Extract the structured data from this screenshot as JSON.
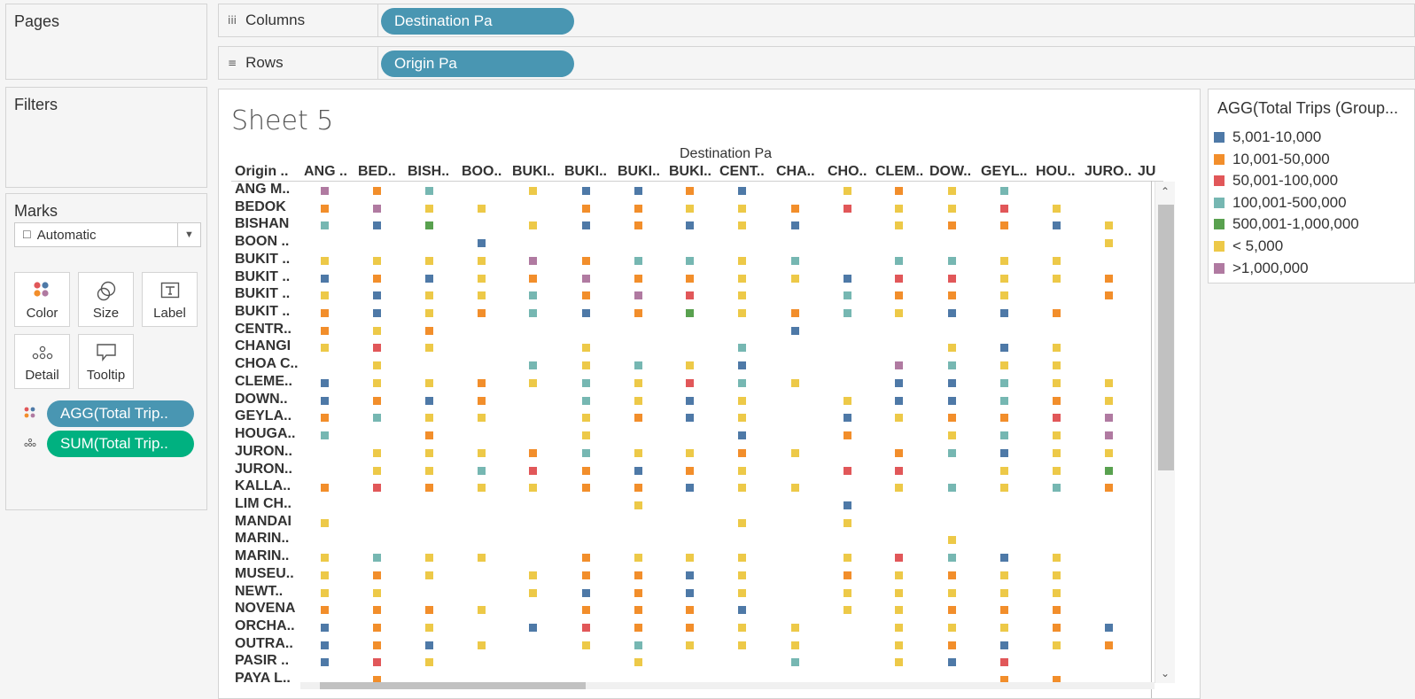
{
  "panels": {
    "pages": "Pages",
    "filters": "Filters",
    "marks": "Marks"
  },
  "shelves": {
    "columns": {
      "label": "Columns",
      "icon": "iii",
      "pill": "Destination Pa"
    },
    "rows": {
      "label": "Rows",
      "icon": "≡",
      "pill": "Origin Pa"
    }
  },
  "marks_card": {
    "mark_type": "Automatic",
    "mark_type_icon": "☐",
    "buttons": [
      "Color",
      "Size",
      "Label",
      "Detail",
      "Tooltip"
    ],
    "pills": [
      {
        "text": "AGG(Total Trip..",
        "kind": "color-icon"
      },
      {
        "text": "SUM(Total Trip..",
        "kind": "detail-icon"
      }
    ]
  },
  "sheet": {
    "title": "Sheet 5",
    "column_header": "Destination Pa",
    "row_header": "Origin ..",
    "columns": [
      "ANG ..",
      "BED..",
      "BISH..",
      "BOO..",
      "BUKI..",
      "BUKI..",
      "BUKI..",
      "BUKI..",
      "CENT..",
      "CHA..",
      "CHO..",
      "CLEM..",
      "DOW..",
      "GEYL..",
      "HOU..",
      "JURO..",
      "JU"
    ],
    "rows": [
      "ANG M..",
      "BEDOK",
      "BISHAN",
      "BOON ..",
      "BUKIT ..",
      "BUKIT ..",
      "BUKIT ..",
      "BUKIT ..",
      "CENTR..",
      "CHANGI",
      "CHOA C..",
      "CLEME..",
      "DOWN..",
      "GEYLA..",
      "HOUGA..",
      "JURON..",
      "JURON..",
      "KALLA..",
      "LIM CH..",
      "MANDAI",
      "MARIN..",
      "MARIN..",
      "MUSEU..",
      "NEWT..",
      "NOVENA",
      "ORCHA..",
      "OUTRA..",
      "PASIR ..",
      "PAYA L.."
    ]
  },
  "legend": {
    "title": "AGG(Total Trips (Group...",
    "items": [
      {
        "key": "a",
        "label": "5,001-10,000",
        "color": "#4e79a7"
      },
      {
        "key": "b",
        "label": "10,001-50,000",
        "color": "#f28e2b"
      },
      {
        "key": "c",
        "label": "50,001-100,000",
        "color": "#e15759"
      },
      {
        "key": "d",
        "label": "100,001-500,000",
        "color": "#76b7b2"
      },
      {
        "key": "e",
        "label": "500,001-1,000,000",
        "color": "#59a14f"
      },
      {
        "key": "f",
        "label": "< 5,000",
        "color": "#edc948"
      },
      {
        "key": "g",
        "label": ">1,000,000",
        "color": "#b07aa1"
      }
    ]
  },
  "chart_data": {
    "type": "heatmap",
    "title": "Sheet 5",
    "x_field": "Destination Pa",
    "y_field": "Origin Pa",
    "color_field": "AGG(Total Trips (Group...",
    "category_codes": {
      "a": "5,001-10,000",
      "b": "10,001-50,000",
      "c": "50,001-100,000",
      "d": "100,001-500,000",
      "e": "500,001-1,000,000",
      "f": "< 5,000",
      "g": ">1,000,000"
    },
    "matrix": [
      "gbd.faaba.fbfd.",
      "bgff.bbffbcffcf",
      "dae.fabafa.fbbaf",
      "...a...........f",
      "ffffgbddfd.ddff.d",
      "abafbgbbffaccffb",
      "faffdbgcf.dbbf.b",
      "bafbdabefbdfaab",
      "bfb......a.....",
      "fcf..f..d...faf.",
      ".f..dfdfa..gdff.a",
      "affbfdfcdf.aadfff",
      "abab.dfaf.faadbff",
      "bdff.fbaf.afbbcgdf",
      "d.b..f..a.b.fdfgf.",
      ".fffbdffbf.bdafff.g",
      ".ffdcbabf.cc.ffe",
      "bcbffbbaff.fdfdbf",
      "......f...a.....",
      "f.......f.f.....",
      "............f...",
      "fdff.bfff.fcdaf",
      "fbf.fbbaf.bfbff",
      "ff..fabaf.fffff",
      "bbbf.bbba.ffbbb",
      "abf.acbbff.fffba",
      "abaf.fdfff.fbafba",
      "acf...f..d.fac..",
      ".b...........bb."
    ]
  }
}
